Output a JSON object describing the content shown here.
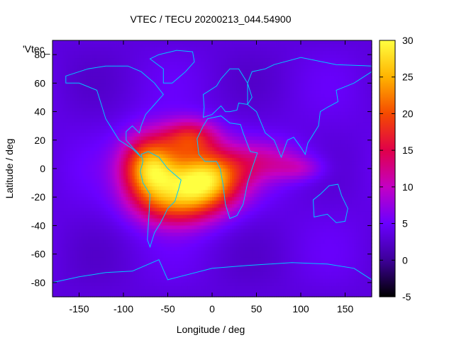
{
  "chart_data": {
    "type": "heatmap",
    "title": "VTEC / TECU 20200213_044.54900",
    "xlabel": "Longitude / deg",
    "ylabel": "Latitude / deg",
    "series_key": "'Vtec_",
    "xlim": [
      -180,
      180
    ],
    "ylim": [
      -90,
      90
    ],
    "xticks": [
      -150,
      -100,
      -50,
      0,
      50,
      100,
      150
    ],
    "yticks": [
      -80,
      -60,
      -40,
      -20,
      0,
      20,
      40,
      60,
      80
    ],
    "colorbar": {
      "range": [
        -5,
        30
      ],
      "ticks": [
        -5,
        0,
        5,
        10,
        15,
        20,
        25,
        30
      ],
      "stops": [
        "#000000",
        "#3d0099",
        "#6a00ff",
        "#c400c4",
        "#e0004a",
        "#f54a00",
        "#ffb300",
        "#ffff40"
      ]
    },
    "background_value": 4,
    "hotspots": [
      {
        "lon": -70,
        "lat": 0,
        "peak": 22,
        "sigma_lon": 22,
        "sigma_lat": 16
      },
      {
        "lon": -10,
        "lat": -7,
        "peak": 24,
        "sigma_lon": 30,
        "sigma_lat": 14
      },
      {
        "lon": -25,
        "lat": 22,
        "peak": 12,
        "sigma_lon": 22,
        "sigma_lat": 9
      },
      {
        "lon": -40,
        "lat": -25,
        "peak": 12,
        "sigma_lon": 32,
        "sigma_lat": 12
      },
      {
        "lon": 60,
        "lat": 5,
        "peak": 6,
        "sigma_lon": 32,
        "sigma_lat": 10
      },
      {
        "lon": 100,
        "lat": 0,
        "peak": 4,
        "sigma_lon": 18,
        "sigma_lat": 6
      }
    ],
    "continents": [
      {
        "name": "north-america",
        "coords": [
          [
            -165,
            65
          ],
          [
            -140,
            70
          ],
          [
            -120,
            72
          ],
          [
            -95,
            72
          ],
          [
            -80,
            68
          ],
          [
            -65,
            60
          ],
          [
            -55,
            52
          ],
          [
            -65,
            45
          ],
          [
            -75,
            38
          ],
          [
            -80,
            30
          ],
          [
            -82,
            25
          ],
          [
            -90,
            30
          ],
          [
            -97,
            26
          ],
          [
            -97,
            20
          ],
          [
            -90,
            15
          ],
          [
            -85,
            12
          ],
          [
            -80,
            8
          ],
          [
            -90,
            14
          ],
          [
            -105,
            20
          ],
          [
            -115,
            30
          ],
          [
            -120,
            35
          ],
          [
            -125,
            45
          ],
          [
            -130,
            55
          ],
          [
            -150,
            60
          ],
          [
            -165,
            60
          ]
        ]
      },
      {
        "name": "south-america",
        "coords": [
          [
            -80,
            10
          ],
          [
            -72,
            12
          ],
          [
            -60,
            8
          ],
          [
            -50,
            0
          ],
          [
            -35,
            -8
          ],
          [
            -38,
            -15
          ],
          [
            -42,
            -23
          ],
          [
            -50,
            -28
          ],
          [
            -58,
            -38
          ],
          [
            -65,
            -45
          ],
          [
            -70,
            -55
          ],
          [
            -73,
            -50
          ],
          [
            -72,
            -40
          ],
          [
            -71,
            -30
          ],
          [
            -70,
            -18
          ],
          [
            -78,
            -10
          ],
          [
            -81,
            -2
          ],
          [
            -78,
            5
          ]
        ]
      },
      {
        "name": "greenland",
        "coords": [
          [
            -55,
            60
          ],
          [
            -45,
            60
          ],
          [
            -30,
            68
          ],
          [
            -20,
            75
          ],
          [
            -22,
            82
          ],
          [
            -40,
            83
          ],
          [
            -60,
            80
          ],
          [
            -70,
            77
          ],
          [
            -55,
            70
          ]
        ]
      },
      {
        "name": "europe",
        "coords": [
          [
            -10,
            36
          ],
          [
            0,
            38
          ],
          [
            10,
            44
          ],
          [
            15,
            40
          ],
          [
            20,
            40
          ],
          [
            28,
            41
          ],
          [
            30,
            46
          ],
          [
            40,
            45
          ],
          [
            45,
            50
          ],
          [
            40,
            60
          ],
          [
            30,
            70
          ],
          [
            20,
            70
          ],
          [
            10,
            63
          ],
          [
            5,
            58
          ],
          [
            -5,
            54
          ],
          [
            -10,
            52
          ],
          [
            -9,
            43
          ]
        ]
      },
      {
        "name": "africa",
        "coords": [
          [
            -17,
            21
          ],
          [
            -10,
            30
          ],
          [
            -5,
            35
          ],
          [
            10,
            37
          ],
          [
            20,
            32
          ],
          [
            32,
            31
          ],
          [
            35,
            25
          ],
          [
            43,
            12
          ],
          [
            51,
            11
          ],
          [
            45,
            0
          ],
          [
            40,
            -10
          ],
          [
            35,
            -25
          ],
          [
            28,
            -33
          ],
          [
            20,
            -35
          ],
          [
            15,
            -25
          ],
          [
            12,
            -10
          ],
          [
            9,
            0
          ],
          [
            5,
            5
          ],
          [
            -8,
            5
          ],
          [
            -15,
            10
          ]
        ]
      },
      {
        "name": "asia",
        "coords": [
          [
            40,
            45
          ],
          [
            50,
            40
          ],
          [
            60,
            25
          ],
          [
            70,
            20
          ],
          [
            78,
            8
          ],
          [
            85,
            20
          ],
          [
            92,
            22
          ],
          [
            100,
            15
          ],
          [
            105,
            10
          ],
          [
            108,
            18
          ],
          [
            120,
            30
          ],
          [
            122,
            40
          ],
          [
            130,
            43
          ],
          [
            142,
            47
          ],
          [
            140,
            55
          ],
          [
            160,
            60
          ],
          [
            180,
            68
          ],
          [
            180,
            72
          ],
          [
            140,
            73
          ],
          [
            100,
            78
          ],
          [
            70,
            73
          ],
          [
            60,
            70
          ],
          [
            45,
            68
          ],
          [
            40,
            60
          ]
        ]
      },
      {
        "name": "australia",
        "coords": [
          [
            114,
            -22
          ],
          [
            122,
            -18
          ],
          [
            132,
            -12
          ],
          [
            142,
            -11
          ],
          [
            146,
            -19
          ],
          [
            153,
            -28
          ],
          [
            150,
            -37
          ],
          [
            140,
            -38
          ],
          [
            130,
            -32
          ],
          [
            115,
            -34
          ]
        ]
      },
      {
        "name": "antarctica",
        "coords": [
          [
            -180,
            -80
          ],
          [
            -150,
            -76
          ],
          [
            -120,
            -73
          ],
          [
            -90,
            -72
          ],
          [
            -60,
            -64
          ],
          [
            -50,
            -78
          ],
          [
            0,
            -70
          ],
          [
            40,
            -68
          ],
          [
            90,
            -66
          ],
          [
            130,
            -67
          ],
          [
            160,
            -70
          ],
          [
            180,
            -78
          ]
        ]
      }
    ]
  }
}
